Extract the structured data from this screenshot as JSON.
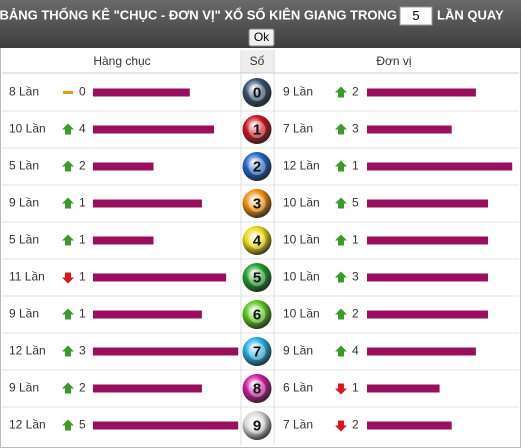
{
  "header": {
    "title": "BẢNG THỐNG KÊ \"CHỤC - ĐƠN VỊ\" XỔ SỐ KIÊN GIANG TRONG",
    "input_value": "5",
    "suffix": "LẦN QUAY",
    "button": "Ok"
  },
  "table": {
    "columns": [
      "Hàng chục",
      "Số",
      "Đơn vị"
    ],
    "bar_color": "#990f5d",
    "rows": [
      {
        "digit": "0",
        "ball_color": "#34506e",
        "tens": {
          "count": 8,
          "label": "8 Lần",
          "trend": "same",
          "change": 0
        },
        "units": {
          "count": 9,
          "label": "9 Lần",
          "trend": "up",
          "change": 2
        }
      },
      {
        "digit": "1",
        "ball_color": "#c8141e",
        "tens": {
          "count": 10,
          "label": "10 Lần",
          "trend": "up",
          "change": 4
        },
        "units": {
          "count": 7,
          "label": "7 Lần",
          "trend": "up",
          "change": 3
        }
      },
      {
        "digit": "2",
        "ball_color": "#1f63c4",
        "tens": {
          "count": 5,
          "label": "5 Lần",
          "trend": "up",
          "change": 2
        },
        "units": {
          "count": 12,
          "label": "12 Lần",
          "trend": "up",
          "change": 1
        }
      },
      {
        "digit": "3",
        "ball_color": "#f08c0a",
        "tens": {
          "count": 9,
          "label": "9 Lần",
          "trend": "up",
          "change": 1
        },
        "units": {
          "count": 10,
          "label": "10 Lần",
          "trend": "up",
          "change": 5
        }
      },
      {
        "digit": "4",
        "ball_color": "#e8d80c",
        "tens": {
          "count": 5,
          "label": "5 Lần",
          "trend": "up",
          "change": 1
        },
        "units": {
          "count": 10,
          "label": "10 Lần",
          "trend": "up",
          "change": 1
        }
      },
      {
        "digit": "5",
        "ball_color": "#1f9a2a",
        "tens": {
          "count": 11,
          "label": "11 Lần",
          "trend": "down",
          "change": 1
        },
        "units": {
          "count": 10,
          "label": "10 Lần",
          "trend": "up",
          "change": 3
        }
      },
      {
        "digit": "6",
        "ball_color": "#5cc51c",
        "tens": {
          "count": 9,
          "label": "9 Lần",
          "trend": "up",
          "change": 1
        },
        "units": {
          "count": 10,
          "label": "10 Lần",
          "trend": "up",
          "change": 2
        }
      },
      {
        "digit": "7",
        "ball_color": "#22aede",
        "tens": {
          "count": 12,
          "label": "12 Lần",
          "trend": "up",
          "change": 3
        },
        "units": {
          "count": 9,
          "label": "9 Lần",
          "trend": "up",
          "change": 4
        }
      },
      {
        "digit": "8",
        "ball_color": "#c81c9c",
        "tens": {
          "count": 9,
          "label": "9 Lần",
          "trend": "up",
          "change": 2
        },
        "units": {
          "count": 6,
          "label": "6 Lần",
          "trend": "down",
          "change": 1
        }
      },
      {
        "digit": "9",
        "ball_color": "#d8d8d8",
        "tens": {
          "count": 12,
          "label": "12 Lần",
          "trend": "up",
          "change": 5
        },
        "units": {
          "count": 7,
          "label": "7 Lần",
          "trend": "down",
          "change": 2
        }
      }
    ]
  }
}
